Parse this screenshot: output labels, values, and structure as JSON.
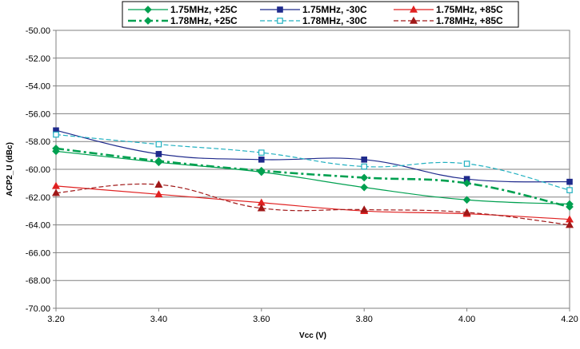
{
  "chart_data": {
    "type": "line",
    "title": "",
    "xlabel": "Vcc (V)",
    "ylabel": "ACP2_U (dBc)",
    "xlim": [
      3.2,
      4.2
    ],
    "ylim": [
      -70,
      -50
    ],
    "x_ticks": [
      3.2,
      3.4,
      3.6,
      3.8,
      4.0,
      4.2
    ],
    "x_tick_labels": [
      "3.20",
      "3.40",
      "3.60",
      "3.80",
      "4.00",
      "4.20"
    ],
    "y_ticks": [
      -50,
      -52,
      -54,
      -56,
      -58,
      -60,
      -62,
      -64,
      -66,
      -68,
      -70
    ],
    "y_tick_labels": [
      "-50.00",
      "-52.00",
      "-54.00",
      "-56.00",
      "-58.00",
      "-60.00",
      "-62.00",
      "-64.00",
      "-66.00",
      "-68.00",
      "-70.00"
    ],
    "grid": true,
    "legend_position": "top",
    "x": [
      3.2,
      3.4,
      3.6,
      3.8,
      4.0,
      4.2
    ],
    "series": [
      {
        "name": "1.75MHz, +25C",
        "color": "#00A050",
        "dash": "solid",
        "width": 1.2,
        "marker": "diamond",
        "marker_fill": true,
        "values": [
          -58.7,
          -59.5,
          -60.2,
          -61.3,
          -62.2,
          -62.5
        ]
      },
      {
        "name": "1.75MHz, -30C",
        "color": "#1F2A8C",
        "dash": "solid",
        "width": 1.2,
        "marker": "square",
        "marker_fill": true,
        "values": [
          -57.2,
          -58.9,
          -59.3,
          -59.3,
          -60.7,
          -60.9
        ]
      },
      {
        "name": "1.75MHz, +85C",
        "color": "#E02020",
        "dash": "solid",
        "width": 1.2,
        "marker": "triangle",
        "marker_fill": true,
        "values": [
          -61.2,
          -61.8,
          -62.4,
          -63.0,
          -63.2,
          -63.6
        ]
      },
      {
        "name": "1.78MHz, +25C",
        "color": "#00A050",
        "dash": "dashdot",
        "width": 2.6,
        "marker": "diamond",
        "marker_fill": true,
        "values": [
          -58.5,
          -59.4,
          -60.1,
          -60.6,
          -61.0,
          -62.7
        ]
      },
      {
        "name": "1.78MHz, -30C",
        "color": "#20B0C0",
        "dash": "dash",
        "width": 1.2,
        "marker": "square",
        "marker_fill": false,
        "values": [
          -57.5,
          -58.2,
          -58.8,
          -59.8,
          -59.6,
          -61.5
        ]
      },
      {
        "name": "1.78MHz, +85C",
        "color": "#A01818",
        "dash": "dash",
        "width": 1.2,
        "marker": "triangle",
        "marker_fill": true,
        "values": [
          -61.7,
          -61.1,
          -62.8,
          -62.9,
          -63.1,
          -64.0
        ]
      }
    ]
  }
}
